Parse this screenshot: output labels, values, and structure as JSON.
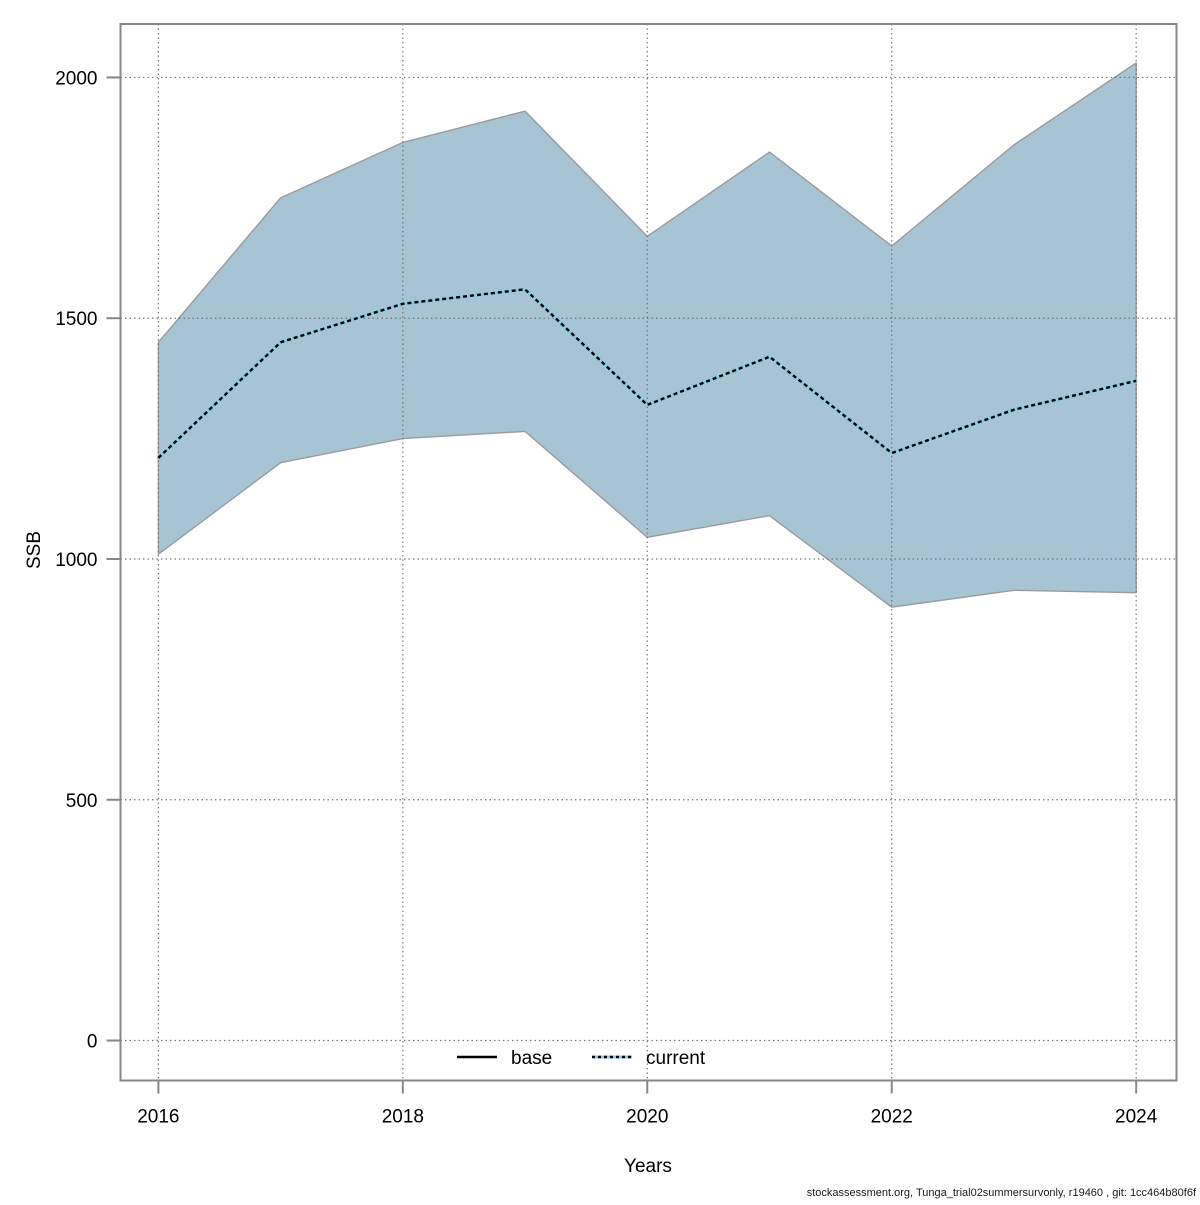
{
  "footer": {
    "attribution": "stockassessment.org, Tunga_trial02summersurvonly, r19460 , git: 1cc464b80f6f"
  },
  "colors": {
    "background": "#ffffff",
    "axis_box": "#878787",
    "tick_mark": "#878787",
    "gridline": "#6f6f6f",
    "band_fill": "#a6c4d4",
    "band_border": "#9b9b9b",
    "current_underlay": "#86cdeb",
    "current_dash": "#000000",
    "base_line": "#000000",
    "footer_text": "#1a1a1a"
  },
  "chart_data": {
    "type": "area",
    "title": "",
    "xlabel": "Years",
    "ylabel": "SSB",
    "x": [
      2016,
      2017,
      2018,
      2019,
      2020,
      2021,
      2022,
      2023,
      2024
    ],
    "series": [
      {
        "name": "current",
        "line_style": "dotted",
        "values": [
          1210,
          1450,
          1530,
          1560,
          1320,
          1420,
          1220,
          1310,
          1370
        ]
      }
    ],
    "band": {
      "series": "current",
      "upper": [
        1450,
        1750,
        1865,
        1930,
        1670,
        1845,
        1650,
        1860,
        2030
      ],
      "lower": [
        1010,
        1200,
        1250,
        1265,
        1045,
        1090,
        900,
        935,
        930
      ]
    },
    "x_ticks": [
      2016,
      2018,
      2020,
      2022,
      2024
    ],
    "y_ticks": [
      0,
      500,
      1000,
      1500,
      2000
    ],
    "xlim": [
      2015.69,
      2024.33
    ],
    "ylim": [
      -83,
      2111
    ],
    "grid": true,
    "legend": {
      "position": "bottom-center-inside",
      "items": [
        {
          "label": "base",
          "style": "solid"
        },
        {
          "label": "current",
          "style": "dotted"
        }
      ]
    }
  }
}
